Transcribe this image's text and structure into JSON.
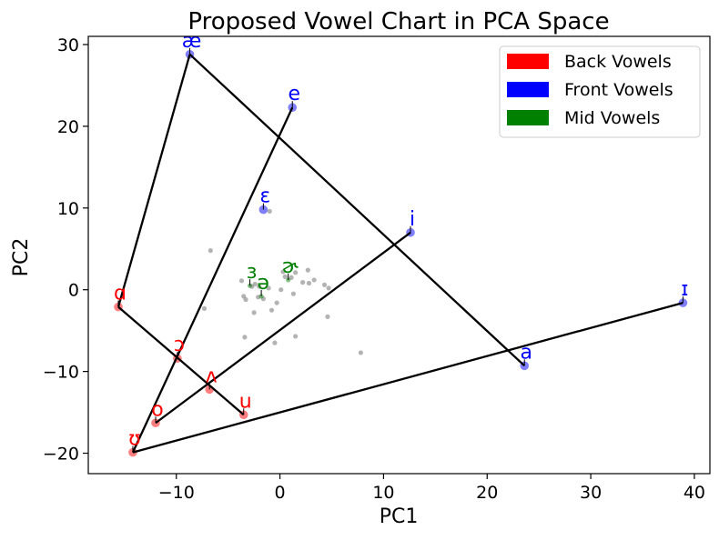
{
  "chart_data": {
    "type": "scatter",
    "title": "Proposed Vowel Chart in PCA Space",
    "xlabel": "PC1",
    "ylabel": "PC2",
    "xlim": [
      -18.5,
      41.5
    ],
    "ylim": [
      -22.5,
      31.0
    ],
    "xticks": [
      -10,
      0,
      10,
      20,
      30,
      40
    ],
    "xtick_labels": [
      "−10",
      "0",
      "10",
      "20",
      "30",
      "40"
    ],
    "yticks": [
      -20,
      -10,
      0,
      10,
      20,
      30
    ],
    "ytick_labels": [
      "−20",
      "−10",
      "0",
      "10",
      "20",
      "30"
    ],
    "grid": false,
    "legend_position": "top-right",
    "colors": {
      "back": "#ff0000",
      "front": "#0000ff",
      "mid": "#008000",
      "other": "#808080",
      "line": "#000000"
    },
    "legend": [
      {
        "label": "Back Vowels",
        "color": "#ff0000"
      },
      {
        "label": "Front Vowels",
        "color": "#0000ff"
      },
      {
        "label": "Mid Vowels",
        "color": "#008000"
      }
    ],
    "vowels": [
      {
        "symbol": "æ",
        "x": -8.7,
        "y": 28.8,
        "group": "front"
      },
      {
        "symbol": "e",
        "x": 1.2,
        "y": 22.3,
        "group": "front"
      },
      {
        "symbol": "ɛ",
        "x": -1.6,
        "y": 9.8,
        "group": "front"
      },
      {
        "symbol": "i",
        "x": 12.6,
        "y": 7.0,
        "group": "front"
      },
      {
        "symbol": "ɪ",
        "x": 38.9,
        "y": -1.6,
        "group": "front"
      },
      {
        "symbol": "a",
        "x": 23.6,
        "y": -9.3,
        "group": "front"
      },
      {
        "symbol": "ɑ",
        "x": -15.6,
        "y": -2.1,
        "group": "back"
      },
      {
        "symbol": "ɔ",
        "x": -9.9,
        "y": -8.4,
        "group": "back"
      },
      {
        "symbol": "ʌ",
        "x": -6.8,
        "y": -12.2,
        "group": "back"
      },
      {
        "symbol": "u",
        "x": -3.5,
        "y": -15.3,
        "group": "back"
      },
      {
        "symbol": "o",
        "x": -12.0,
        "y": -16.3,
        "group": "back"
      },
      {
        "symbol": "ʊ",
        "x": -14.2,
        "y": -19.9,
        "group": "back"
      },
      {
        "symbol": "ɜ",
        "x": -2.9,
        "y": 0.5,
        "group": "mid"
      },
      {
        "symbol": "ɚ",
        "x": 0.8,
        "y": 1.2,
        "group": "mid"
      },
      {
        "symbol": "ə",
        "x": -1.8,
        "y": -0.8,
        "group": "mid"
      }
    ],
    "lines": [
      {
        "from": "ʊ",
        "to": "ɪ"
      },
      {
        "from": "ʊ",
        "to": "e"
      },
      {
        "from": "o",
        "to": "i"
      },
      {
        "from": "ɑ",
        "to": "æ"
      },
      {
        "from": "æ",
        "to": "a"
      },
      {
        "from": "ɑ",
        "to": "u"
      }
    ],
    "other_points": [
      [
        -6.7,
        4.8
      ],
      [
        -1.0,
        9.6
      ],
      [
        -7.3,
        -2.3
      ],
      [
        -3.7,
        1.1
      ],
      [
        -3.5,
        -0.8
      ],
      [
        -3.3,
        -1.2
      ],
      [
        -2.4,
        0.7
      ],
      [
        -2.0,
        0.4
      ],
      [
        -2.5,
        -2.8
      ],
      [
        -1.6,
        -1.1
      ],
      [
        -1.1,
        0.2
      ],
      [
        -0.8,
        -2.5
      ],
      [
        -0.3,
        -1.6
      ],
      [
        0.1,
        0.0
      ],
      [
        0.3,
        2.2
      ],
      [
        0.5,
        1.6
      ],
      [
        1.1,
        1.5
      ],
      [
        1.3,
        -0.5
      ],
      [
        1.5,
        2.1
      ],
      [
        2.2,
        0.9
      ],
      [
        2.7,
        2.4
      ],
      [
        2.8,
        0.8
      ],
      [
        3.3,
        1.2
      ],
      [
        4.3,
        0.6
      ],
      [
        4.6,
        -3.3
      ],
      [
        4.7,
        0.2
      ],
      [
        -3.4,
        -5.8
      ],
      [
        -0.5,
        -6.5
      ],
      [
        1.5,
        -5.7
      ],
      [
        7.8,
        -7.7
      ],
      [
        -2.1,
        -0.9
      ],
      [
        -2.7,
        0.4
      ]
    ]
  }
}
